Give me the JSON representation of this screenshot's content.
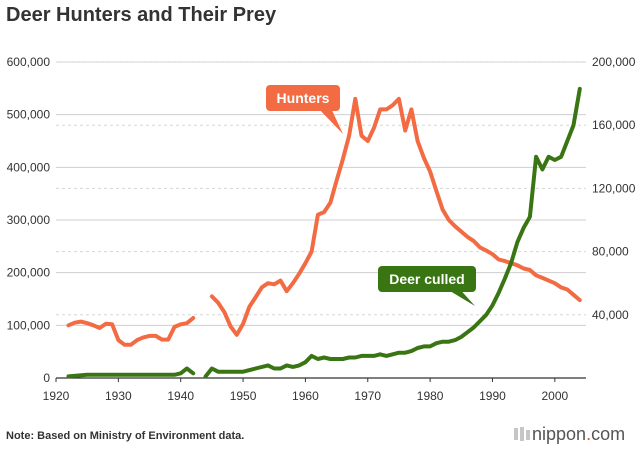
{
  "header": {
    "title": "Deer Hunters and Their Prey"
  },
  "footer": {
    "note": "Note: Based on Ministry of Environment data.",
    "brand_name": "nippon",
    "brand_dot": ".",
    "brand_tld": "com"
  },
  "colors": {
    "hunters": "#f26b43",
    "deer": "#3a7514",
    "grid_solid": "#cfcfcf",
    "grid_dashed": "#d6d6d6",
    "text": "#333333"
  },
  "chart_data": {
    "type": "line",
    "title": "Deer Hunters and Their Prey",
    "xlabel": "",
    "ylabel_left": "",
    "ylabel_right": "",
    "xlim": [
      1920,
      2005
    ],
    "ylim_left": [
      0,
      600000
    ],
    "ylim_right": [
      0,
      200000
    ],
    "x_ticks": [
      "1920",
      "1930",
      "1940",
      "1950",
      "1960",
      "1970",
      "1980",
      "1990",
      "2000"
    ],
    "y_left_ticks": [
      "0",
      "100,000",
      "200,000",
      "300,000",
      "400,000",
      "500,000",
      "600,000"
    ],
    "y_right_ticks": [
      "40,000",
      "80,000",
      "120,000",
      "160,000",
      "200,000"
    ],
    "series": [
      {
        "name": "Hunters",
        "axis": "left",
        "label": "Hunters",
        "segments": [
          [
            [
              1922,
              100000
            ],
            [
              1923,
              105000
            ],
            [
              1924,
              107000
            ],
            [
              1925,
              104000
            ],
            [
              1926,
              100000
            ],
            [
              1927,
              95000
            ],
            [
              1928,
              103000
            ],
            [
              1929,
              102000
            ],
            [
              1930,
              72000
            ],
            [
              1931,
              63000
            ],
            [
              1932,
              63000
            ],
            [
              1933,
              72000
            ],
            [
              1934,
              77000
            ],
            [
              1935,
              80000
            ],
            [
              1936,
              80000
            ],
            [
              1937,
              73000
            ],
            [
              1938,
              73000
            ],
            [
              1939,
              97000
            ],
            [
              1940,
              102000
            ],
            [
              1941,
              104000
            ],
            [
              1942,
              114000
            ]
          ],
          [
            [
              1945,
              155000
            ],
            [
              1946,
              143000
            ],
            [
              1947,
              125000
            ],
            [
              1948,
              98000
            ],
            [
              1949,
              82000
            ],
            [
              1950,
              103000
            ],
            [
              1951,
              135000
            ],
            [
              1952,
              153000
            ],
            [
              1953,
              172000
            ],
            [
              1954,
              180000
            ],
            [
              1955,
              178000
            ],
            [
              1956,
              185000
            ],
            [
              1957,
              165000
            ],
            [
              1958,
              180000
            ],
            [
              1959,
              198000
            ],
            [
              1960,
              218000
            ],
            [
              1961,
              240000
            ],
            [
              1962,
              310000
            ],
            [
              1963,
              315000
            ],
            [
              1964,
              333000
            ],
            [
              1965,
              375000
            ],
            [
              1966,
              415000
            ],
            [
              1967,
              460000
            ],
            [
              1968,
              530000
            ],
            [
              1969,
              460000
            ],
            [
              1970,
              450000
            ],
            [
              1971,
              475000
            ],
            [
              1972,
              510000
            ],
            [
              1973,
              510000
            ],
            [
              1974,
              518000
            ],
            [
              1975,
              530000
            ],
            [
              1976,
              470000
            ],
            [
              1977,
              510000
            ],
            [
              1978,
              450000
            ],
            [
              1979,
              418000
            ],
            [
              1980,
              392000
            ],
            [
              1981,
              355000
            ],
            [
              1982,
              320000
            ],
            [
              1983,
              300000
            ],
            [
              1984,
              288000
            ],
            [
              1985,
              278000
            ],
            [
              1986,
              268000
            ],
            [
              1987,
              260000
            ],
            [
              1988,
              248000
            ],
            [
              1989,
              242000
            ],
            [
              1990,
              235000
            ],
            [
              1991,
              225000
            ],
            [
              1992,
              222000
            ],
            [
              1993,
              218000
            ],
            [
              1994,
              214000
            ],
            [
              1995,
              208000
            ],
            [
              1996,
              205000
            ],
            [
              1997,
              195000
            ],
            [
              1998,
              190000
            ],
            [
              1999,
              185000
            ],
            [
              2000,
              180000
            ],
            [
              2001,
              172000
            ],
            [
              2002,
              168000
            ],
            [
              2003,
              158000
            ],
            [
              2004,
              148000
            ]
          ]
        ]
      },
      {
        "name": "Deer culled",
        "axis": "right",
        "label": "Deer culled",
        "segments": [
          [
            [
              1922,
              1000
            ],
            [
              1925,
              2000
            ],
            [
              1930,
              2000
            ],
            [
              1935,
              2000
            ],
            [
              1939,
              2000
            ],
            [
              1940,
              3000
            ],
            [
              1941,
              6000
            ],
            [
              1942,
              3000
            ]
          ],
          [
            [
              1944,
              1000
            ],
            [
              1945,
              6000
            ],
            [
              1946,
              4000
            ],
            [
              1948,
              4000
            ],
            [
              1950,
              4000
            ],
            [
              1952,
              6000
            ],
            [
              1954,
              8000
            ],
            [
              1955,
              6000
            ],
            [
              1956,
              6000
            ],
            [
              1957,
              8000
            ],
            [
              1958,
              7000
            ],
            [
              1959,
              8000
            ],
            [
              1960,
              10000
            ],
            [
              1961,
              14000
            ],
            [
              1962,
              12000
            ],
            [
              1963,
              13000
            ],
            [
              1964,
              12000
            ],
            [
              1965,
              12000
            ],
            [
              1966,
              12000
            ],
            [
              1967,
              13000
            ],
            [
              1968,
              13000
            ],
            [
              1969,
              14000
            ],
            [
              1970,
              14000
            ],
            [
              1971,
              14000
            ],
            [
              1972,
              15000
            ],
            [
              1973,
              14000
            ],
            [
              1974,
              15000
            ],
            [
              1975,
              16000
            ],
            [
              1976,
              16000
            ],
            [
              1977,
              17000
            ],
            [
              1978,
              19000
            ],
            [
              1979,
              20000
            ],
            [
              1980,
              20000
            ],
            [
              1981,
              22000
            ],
            [
              1982,
              23000
            ],
            [
              1983,
              23000
            ],
            [
              1984,
              24000
            ],
            [
              1985,
              26000
            ],
            [
              1986,
              29000
            ],
            [
              1987,
              32000
            ],
            [
              1988,
              36000
            ],
            [
              1989,
              40000
            ],
            [
              1990,
              46000
            ],
            [
              1991,
              54000
            ],
            [
              1992,
              63000
            ],
            [
              1993,
              73000
            ],
            [
              1994,
              86000
            ],
            [
              1995,
              95000
            ],
            [
              1996,
              102000
            ],
            [
              1997,
              140000
            ],
            [
              1998,
              132000
            ],
            [
              1999,
              140000
            ],
            [
              2000,
              138000
            ],
            [
              2001,
              140000
            ],
            [
              2002,
              150000
            ],
            [
              2003,
              160000
            ],
            [
              2004,
              183000
            ]
          ]
        ]
      }
    ]
  }
}
